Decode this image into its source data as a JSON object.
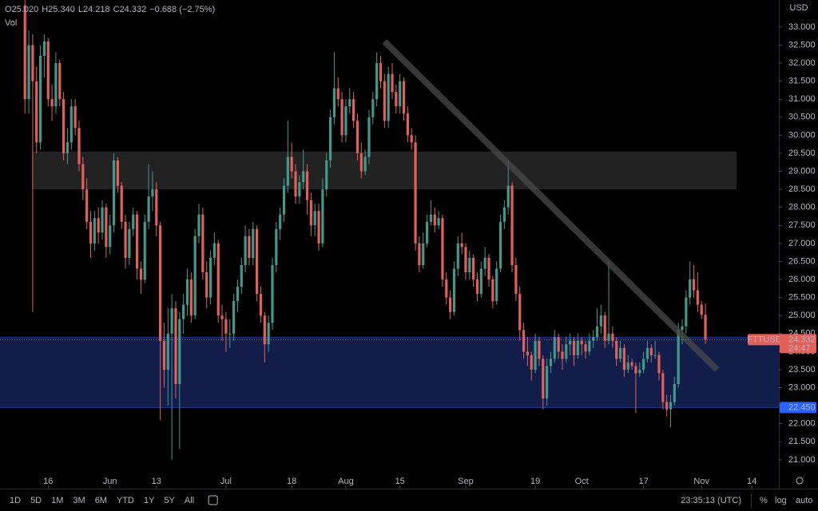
{
  "chart_data": {
    "type": "candlestick",
    "currency": "USD",
    "volume_label": "Vol",
    "ohlc_legend": [
      "O",
      "25.020",
      "H",
      "25.340",
      "L",
      "24.218",
      "C",
      "24.332",
      "−0.688 (−2.75%)"
    ],
    "up_color": "#3f9a8c",
    "down_color": "#e3605a",
    "ylim": [
      20.2,
      33.75
    ],
    "xlim": [
      -6.45,
      195
    ],
    "yticks": [
      {
        "value": 21,
        "label": "21.000"
      },
      {
        "value": 21.5,
        "label": "21.500"
      },
      {
        "value": 22,
        "label": "22.000"
      },
      {
        "value": 22.5,
        "label": "22.500"
      },
      {
        "value": 23,
        "label": "23.000"
      },
      {
        "value": 23.5,
        "label": "23.500"
      },
      {
        "value": 24,
        "label": "24.000"
      },
      {
        "value": 24.5,
        "label": "24.500"
      },
      {
        "value": 25,
        "label": "25.000"
      },
      {
        "value": 25.5,
        "label": "25.500"
      },
      {
        "value": 26,
        "label": "26.000"
      },
      {
        "value": 26.5,
        "label": "26.500"
      },
      {
        "value": 27,
        "label": "27.000"
      },
      {
        "value": 27.5,
        "label": "27.500"
      },
      {
        "value": 28,
        "label": "28.000"
      },
      {
        "value": 28.5,
        "label": "28.500"
      },
      {
        "value": 29,
        "label": "29.000"
      },
      {
        "value": 29.5,
        "label": "29.500"
      },
      {
        "value": 30,
        "label": "30.000"
      },
      {
        "value": 30.5,
        "label": "30.500"
      },
      {
        "value": 31,
        "label": "31.000"
      },
      {
        "value": 31.5,
        "label": "31.500"
      },
      {
        "value": 32,
        "label": "32.000"
      },
      {
        "value": 32.5,
        "label": "32.500"
      },
      {
        "value": 33,
        "label": "33.000"
      }
    ],
    "xticks": [
      {
        "value": 6,
        "label": "16"
      },
      {
        "value": 22,
        "label": "Jun"
      },
      {
        "value": 34,
        "label": "13"
      },
      {
        "value": 52,
        "label": "Jul"
      },
      {
        "value": 69,
        "label": "18"
      },
      {
        "value": 83,
        "label": "Aug"
      },
      {
        "value": 97,
        "label": "15"
      },
      {
        "value": 114,
        "label": "Sep"
      },
      {
        "value": 132,
        "label": "19"
      },
      {
        "value": 144,
        "label": "Oct"
      },
      {
        "value": 160,
        "label": "17"
      },
      {
        "value": 175,
        "label": "Nov"
      },
      {
        "value": 188,
        "label": "14"
      }
    ],
    "zones": [
      {
        "top": 29.55,
        "bottom": 28.5,
        "color": "#262626"
      },
      {
        "top": 24.4,
        "bottom": 22.45,
        "color": "#142052",
        "label": "22.450",
        "label_color": "#2962ff"
      }
    ],
    "trendline": {
      "start": [
        93,
        32.6
      ],
      "end": [
        179,
        23.5
      ],
      "color": "#4a4a4a"
    },
    "last_price": {
      "symbol": "FTTUSD",
      "value": 24.332,
      "label": "24.332",
      "countdown": "24:47",
      "color": "#e3605a"
    },
    "candles": [
      [
        33.6,
        33.8,
        30.6,
        31.0
      ],
      [
        31.0,
        32.9,
        30.6,
        32.5
      ],
      [
        32.5,
        32.8,
        25.1,
        31.5
      ],
      [
        31.5,
        31.9,
        29.5,
        29.8
      ],
      [
        29.8,
        32.5,
        29.6,
        32.2
      ],
      [
        32.2,
        32.8,
        31.6,
        32.6
      ],
      [
        32.6,
        32.7,
        30.8,
        31.0
      ],
      [
        31.0,
        31.4,
        30.4,
        30.8
      ],
      [
        30.8,
        32.3,
        30.6,
        32.0
      ],
      [
        32.0,
        32.1,
        30.8,
        31.0
      ],
      [
        31.0,
        31.2,
        29.3,
        29.5
      ],
      [
        29.5,
        30.2,
        29.2,
        29.8
      ],
      [
        29.8,
        31.0,
        29.6,
        30.8
      ],
      [
        30.8,
        31.0,
        30.0,
        30.2
      ],
      [
        30.2,
        30.4,
        29.0,
        29.2
      ],
      [
        29.2,
        29.4,
        28.2,
        28.5
      ],
      [
        28.5,
        28.8,
        27.4,
        27.6
      ],
      [
        27.6,
        27.9,
        26.6,
        27.0
      ],
      [
        27.0,
        27.9,
        26.8,
        27.7
      ],
      [
        27.7,
        28.0,
        27.0,
        27.3
      ],
      [
        27.3,
        28.2,
        27.1,
        28.0
      ],
      [
        28.0,
        28.1,
        26.6,
        26.9
      ],
      [
        26.9,
        27.8,
        26.7,
        27.5
      ],
      [
        27.5,
        29.5,
        27.3,
        29.3
      ],
      [
        29.3,
        29.4,
        28.4,
        28.6
      ],
      [
        28.6,
        28.7,
        27.4,
        27.6
      ],
      [
        27.6,
        27.8,
        26.3,
        26.6
      ],
      [
        26.6,
        27.6,
        26.4,
        27.4
      ],
      [
        27.4,
        28.0,
        27.2,
        27.8
      ],
      [
        27.8,
        27.9,
        26.0,
        26.3
      ],
      [
        26.3,
        26.5,
        25.6,
        26.0
      ],
      [
        26.0,
        27.8,
        25.9,
        27.6
      ],
      [
        27.6,
        29.2,
        27.4,
        28.3
      ],
      [
        28.3,
        29.0,
        27.9,
        28.5
      ],
      [
        28.5,
        28.7,
        27.2,
        27.5
      ],
      [
        27.5,
        27.6,
        22.1,
        24.3
      ],
      [
        24.3,
        24.8,
        23.0,
        23.5
      ],
      [
        23.5,
        25.2,
        22.5,
        24.5
      ],
      [
        24.5,
        25.6,
        21.0,
        25.2
      ],
      [
        25.2,
        25.4,
        22.7,
        23.1
      ],
      [
        23.1,
        25.1,
        21.3,
        24.9
      ],
      [
        24.9,
        25.6,
        24.5,
        25.3
      ],
      [
        25.3,
        26.3,
        25.0,
        26.0
      ],
      [
        26.0,
        26.2,
        24.8,
        25.0
      ],
      [
        25.0,
        27.4,
        24.9,
        27.2
      ],
      [
        27.2,
        28.1,
        27.0,
        27.8
      ],
      [
        27.8,
        28.0,
        26.0,
        26.2
      ],
      [
        26.2,
        26.5,
        25.2,
        25.5
      ],
      [
        25.5,
        26.8,
        25.3,
        26.6
      ],
      [
        26.6,
        27.3,
        26.4,
        27.0
      ],
      [
        27.0,
        27.1,
        24.8,
        25.0
      ],
      [
        25.0,
        25.3,
        24.3,
        24.9
      ],
      [
        24.9,
        25.1,
        24.0,
        24.5
      ],
      [
        24.5,
        24.9,
        24.1,
        24.5
      ],
      [
        24.5,
        25.6,
        24.3,
        25.4
      ],
      [
        25.4,
        26.0,
        25.1,
        25.8
      ],
      [
        25.8,
        26.6,
        25.6,
        26.4
      ],
      [
        26.4,
        27.5,
        26.2,
        27.2
      ],
      [
        27.2,
        27.4,
        26.4,
        26.6
      ],
      [
        26.6,
        27.6,
        26.4,
        27.4
      ],
      [
        27.4,
        27.5,
        25.4,
        25.6
      ],
      [
        25.6,
        25.8,
        24.8,
        25.0
      ],
      [
        25.0,
        25.1,
        23.7,
        24.2
      ],
      [
        24.2,
        25.0,
        24.0,
        24.8
      ],
      [
        24.8,
        26.6,
        24.6,
        26.4
      ],
      [
        26.4,
        27.6,
        26.2,
        27.4
      ],
      [
        27.4,
        28.0,
        27.1,
        27.8
      ],
      [
        27.8,
        28.8,
        27.6,
        28.6
      ],
      [
        28.6,
        30.4,
        28.4,
        29.4
      ],
      [
        29.4,
        29.8,
        28.8,
        29.0
      ],
      [
        29.0,
        29.2,
        28.1,
        28.3
      ],
      [
        28.3,
        28.9,
        28.1,
        28.7
      ],
      [
        28.7,
        29.6,
        28.5,
        29.0
      ],
      [
        29.0,
        29.2,
        27.8,
        28.2
      ],
      [
        28.2,
        28.4,
        27.2,
        27.5
      ],
      [
        27.5,
        28.1,
        27.2,
        27.9
      ],
      [
        27.9,
        28.1,
        26.8,
        27.0
      ],
      [
        27.0,
        28.8,
        26.9,
        28.5
      ],
      [
        28.5,
        29.5,
        28.3,
        29.3
      ],
      [
        29.3,
        30.7,
        29.1,
        30.5
      ],
      [
        30.5,
        32.3,
        30.3,
        31.3
      ],
      [
        31.3,
        31.6,
        30.8,
        31.0
      ],
      [
        31.0,
        31.2,
        29.8,
        30.0
      ],
      [
        30.0,
        31.0,
        29.8,
        30.8
      ],
      [
        30.8,
        31.3,
        30.6,
        31.0
      ],
      [
        31.0,
        31.2,
        30.2,
        30.4
      ],
      [
        30.4,
        30.6,
        29.3,
        29.5
      ],
      [
        29.5,
        29.8,
        28.8,
        29.0
      ],
      [
        29.0,
        29.6,
        28.9,
        29.4
      ],
      [
        29.4,
        30.7,
        29.2,
        30.5
      ],
      [
        30.5,
        31.2,
        30.3,
        31.0
      ],
      [
        31.0,
        32.3,
        30.8,
        32.0
      ],
      [
        32.0,
        32.2,
        31.3,
        31.5
      ],
      [
        31.5,
        31.7,
        30.2,
        30.4
      ],
      [
        30.4,
        31.9,
        30.2,
        31.7
      ],
      [
        31.7,
        32.0,
        31.0,
        31.2
      ],
      [
        31.2,
        31.4,
        30.6,
        30.8
      ],
      [
        30.8,
        31.7,
        30.6,
        31.5
      ],
      [
        31.5,
        31.6,
        30.4,
        30.6
      ],
      [
        30.6,
        30.8,
        29.8,
        30.0
      ],
      [
        30.0,
        30.2,
        29.6,
        29.8
      ],
      [
        29.8,
        30.0,
        26.8,
        27.0
      ],
      [
        27.0,
        27.2,
        26.2,
        26.4
      ],
      [
        26.4,
        27.3,
        26.3,
        27.0
      ],
      [
        27.0,
        27.8,
        26.9,
        27.6
      ],
      [
        27.6,
        28.2,
        27.5,
        27.8
      ],
      [
        27.8,
        28.0,
        27.3,
        27.5
      ],
      [
        27.5,
        27.9,
        27.4,
        27.7
      ],
      [
        27.7,
        27.8,
        25.8,
        26.0
      ],
      [
        26.0,
        26.2,
        25.3,
        25.5
      ],
      [
        25.5,
        25.7,
        24.9,
        25.1
      ],
      [
        25.1,
        26.5,
        25.0,
        26.3
      ],
      [
        26.3,
        27.2,
        26.1,
        27.0
      ],
      [
        27.0,
        27.3,
        26.7,
        26.9
      ],
      [
        26.9,
        27.0,
        26.0,
        26.2
      ],
      [
        26.2,
        26.8,
        26.0,
        26.6
      ],
      [
        26.6,
        26.7,
        25.8,
        26.0
      ],
      [
        26.0,
        26.2,
        25.4,
        25.6
      ],
      [
        25.6,
        26.5,
        25.5,
        26.3
      ],
      [
        26.3,
        26.9,
        26.1,
        26.6
      ],
      [
        26.6,
        26.7,
        25.8,
        26.0
      ],
      [
        26.0,
        26.1,
        25.2,
        25.4
      ],
      [
        25.4,
        26.5,
        25.3,
        26.3
      ],
      [
        26.3,
        27.8,
        26.2,
        27.6
      ],
      [
        27.6,
        28.2,
        27.4,
        28.0
      ],
      [
        28.0,
        29.3,
        27.8,
        28.6
      ],
      [
        28.6,
        28.7,
        26.2,
        26.4
      ],
      [
        26.4,
        26.6,
        25.4,
        25.6
      ],
      [
        25.6,
        25.8,
        24.3,
        24.6
      ],
      [
        24.6,
        24.8,
        23.8,
        24.0
      ],
      [
        24.0,
        24.4,
        23.6,
        23.9
      ],
      [
        23.9,
        24.0,
        23.2,
        23.5
      ],
      [
        23.5,
        24.5,
        23.4,
        24.3
      ],
      [
        24.3,
        24.4,
        23.6,
        23.8
      ],
      [
        23.8,
        23.9,
        22.4,
        22.7
      ],
      [
        22.7,
        23.8,
        22.5,
        23.6
      ],
      [
        23.6,
        24.0,
        23.4,
        23.8
      ],
      [
        23.8,
        24.6,
        23.7,
        24.4
      ],
      [
        24.4,
        24.5,
        23.8,
        24.0
      ],
      [
        24.0,
        24.2,
        23.5,
        23.8
      ],
      [
        23.8,
        24.4,
        23.7,
        24.2
      ],
      [
        24.2,
        24.5,
        23.9,
        24.3
      ],
      [
        24.3,
        24.4,
        23.6,
        23.9
      ],
      [
        23.9,
        24.5,
        23.8,
        24.3
      ],
      [
        24.3,
        24.4,
        23.9,
        24.2
      ],
      [
        24.2,
        24.3,
        23.8,
        24.0
      ],
      [
        24.0,
        24.5,
        23.9,
        24.3
      ],
      [
        24.3,
        24.6,
        24.1,
        24.4
      ],
      [
        24.4,
        25.2,
        24.3,
        24.7
      ],
      [
        24.7,
        25.3,
        24.5,
        25.0
      ],
      [
        25.0,
        25.1,
        24.1,
        24.3
      ],
      [
        24.3,
        26.5,
        24.2,
        24.5
      ],
      [
        24.5,
        24.7,
        24.1,
        24.3
      ],
      [
        24.3,
        24.4,
        23.6,
        23.8
      ],
      [
        23.8,
        24.3,
        23.7,
        24.1
      ],
      [
        24.1,
        24.2,
        23.3,
        23.5
      ],
      [
        23.5,
        23.9,
        23.4,
        23.7
      ],
      [
        23.7,
        23.8,
        23.5,
        23.6
      ],
      [
        23.6,
        23.7,
        22.3,
        23.4
      ],
      [
        23.4,
        23.7,
        23.3,
        23.5
      ],
      [
        23.5,
        24.0,
        23.4,
        23.8
      ],
      [
        23.8,
        24.3,
        23.7,
        24.1
      ],
      [
        24.1,
        24.2,
        23.7,
        23.9
      ],
      [
        23.9,
        24.3,
        23.8,
        23.9
      ],
      [
        23.9,
        24.0,
        23.2,
        23.4
      ],
      [
        23.4,
        23.5,
        22.4,
        22.6
      ],
      [
        22.6,
        22.8,
        22.2,
        22.4
      ],
      [
        22.4,
        22.8,
        21.9,
        22.6
      ],
      [
        22.6,
        23.3,
        22.5,
        23.1
      ],
      [
        23.1,
        24.8,
        23.0,
        24.6
      ],
      [
        24.6,
        24.9,
        24.2,
        24.7
      ],
      [
        24.7,
        25.7,
        24.5,
        25.5
      ],
      [
        25.5,
        26.5,
        25.3,
        26.0
      ],
      [
        26.0,
        26.4,
        25.5,
        25.7
      ],
      [
        25.7,
        26.2,
        25.1,
        25.3
      ],
      [
        25.3,
        25.4,
        24.9,
        25.02
      ],
      [
        25.02,
        25.34,
        24.218,
        24.332
      ]
    ]
  },
  "toolbar": {
    "ranges": [
      "1D",
      "5D",
      "1M",
      "3M",
      "6M",
      "YTD",
      "1Y",
      "5Y",
      "All"
    ],
    "clock": "23:35:13 (UTC)",
    "options": [
      "%",
      "log",
      "auto"
    ]
  }
}
